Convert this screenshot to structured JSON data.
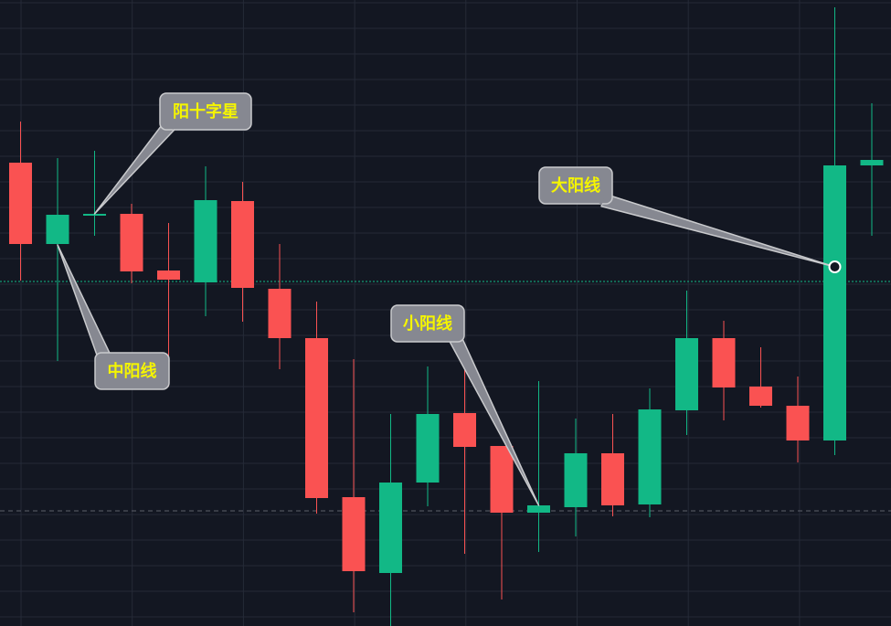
{
  "chart_data": {
    "type": "candlestick",
    "title": "",
    "xlabel": "",
    "ylabel": "",
    "ylim": [
      0,
      70
    ],
    "grid": true,
    "colors": {
      "background": "#131722",
      "up": "#12b886",
      "down": "#fa5252",
      "grid": "#252a37",
      "annotation_fill": "#868891",
      "annotation_border": "#c9cacd",
      "annotation_text": "#f5f500"
    },
    "candles": [
      {
        "o": 52.2,
        "h": 56.7,
        "l": 39.3,
        "c": 43.3
      },
      {
        "o": 43.3,
        "h": 52.7,
        "l": 30.5,
        "c": 46.5
      },
      {
        "o": 46.5,
        "h": 53.5,
        "l": 44.2,
        "c": 46.6
      },
      {
        "o": 46.6,
        "h": 47.7,
        "l": 39.0,
        "c": 40.3
      },
      {
        "o": 40.4,
        "h": 45.6,
        "l": 27.7,
        "c": 39.4
      },
      {
        "o": 39.1,
        "h": 51.8,
        "l": 35.4,
        "c": 48.1
      },
      {
        "o": 48.0,
        "h": 50.1,
        "l": 34.8,
        "c": 38.5
      },
      {
        "o": 38.4,
        "h": 43.3,
        "l": 29.6,
        "c": 33.0
      },
      {
        "o": 33.0,
        "h": 37.0,
        "l": 13.8,
        "c": 15.5
      },
      {
        "o": 15.6,
        "h": 30.7,
        "l": 3.0,
        "c": 7.5
      },
      {
        "o": 7.3,
        "h": 24.7,
        "l": 1.5,
        "c": 17.2
      },
      {
        "o": 17.2,
        "h": 29.9,
        "l": 14.6,
        "c": 24.7
      },
      {
        "o": 24.8,
        "h": 29.7,
        "l": 9.4,
        "c": 21.1
      },
      {
        "o": 21.2,
        "h": 21.2,
        "l": 4.4,
        "c": 13.9
      },
      {
        "o": 13.9,
        "h": 28.3,
        "l": 9.6,
        "c": 14.7
      },
      {
        "o": 14.5,
        "h": 24.2,
        "l": 11.3,
        "c": 20.4
      },
      {
        "o": 20.4,
        "h": 24.7,
        "l": 13.5,
        "c": 14.7
      },
      {
        "o": 14.8,
        "h": 27.5,
        "l": 13.4,
        "c": 25.2
      },
      {
        "o": 25.1,
        "h": 38.2,
        "l": 22.4,
        "c": 33.0
      },
      {
        "o": 33.0,
        "h": 34.9,
        "l": 24.0,
        "c": 27.6
      },
      {
        "o": 27.7,
        "h": 32.0,
        "l": 25.4,
        "c": 25.6
      },
      {
        "o": 25.6,
        "h": 28.8,
        "l": 19.4,
        "c": 21.8
      },
      {
        "o": 21.8,
        "h": 69.2,
        "l": 20.2,
        "c": 51.9
      },
      {
        "o": 51.9,
        "h": 58.7,
        "l": 44.2,
        "c": 52.5
      }
    ],
    "reference_lines": [
      {
        "price": 39.2,
        "style": "dotted",
        "color": "#12b886"
      },
      {
        "price": 14.1,
        "style": "dashed",
        "color": "#5d606b"
      }
    ],
    "annotations": [
      {
        "text": "阳十字星",
        "candle": 2,
        "price": 46.6,
        "marker": false
      },
      {
        "text": "中阳线",
        "candle": 1,
        "price": 43.2,
        "marker": false
      },
      {
        "text": "小阳线",
        "candle": 14,
        "price": 14.7,
        "marker": false
      },
      {
        "text": "大阳线",
        "candle": 22,
        "price": 40.8,
        "marker": true
      }
    ]
  }
}
